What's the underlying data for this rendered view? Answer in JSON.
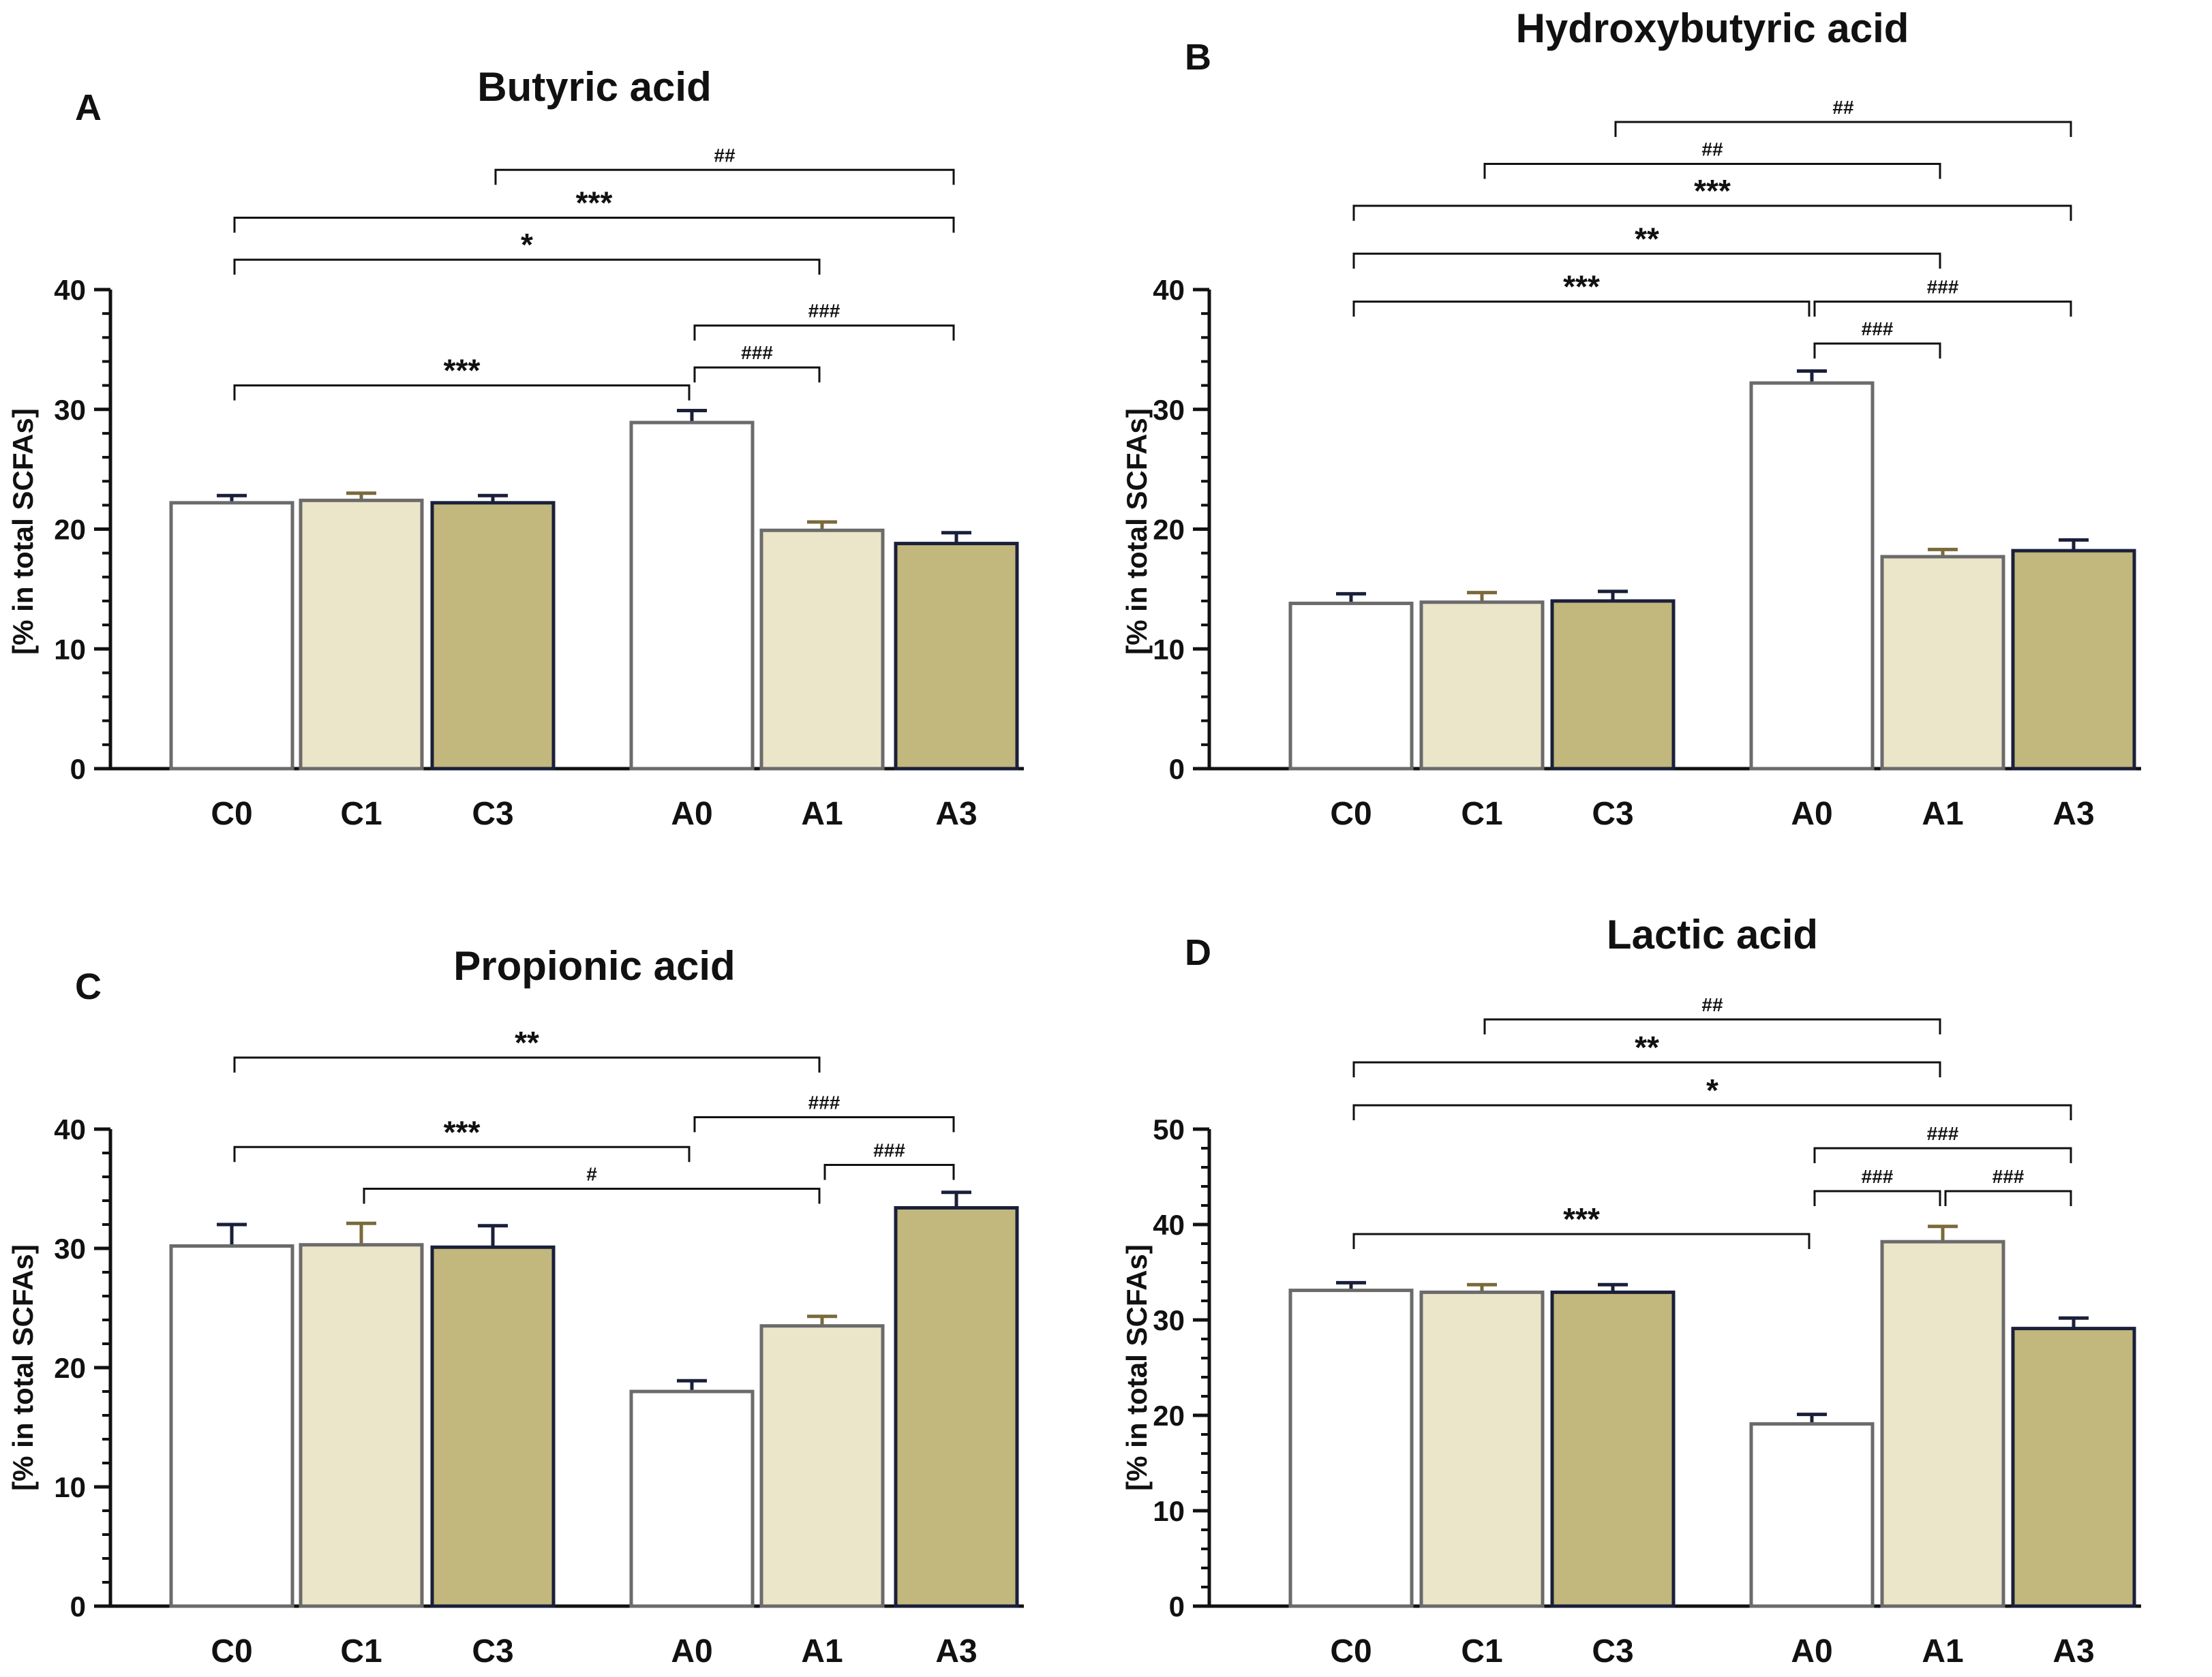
{
  "y_axis_label": "[% in total SCFAs]",
  "chart_data": [
    {
      "type": "bar",
      "panel_label": "A",
      "title": "Butyric acid",
      "ylabel": "[% in total SCFAs]",
      "ylim": [
        0,
        40
      ],
      "yticks": [
        0,
        10,
        20,
        30,
        40
      ],
      "categories": [
        "C0",
        "C1",
        "C3",
        "A0",
        "A1",
        "A3"
      ],
      "values": [
        22.2,
        22.4,
        22.2,
        28.9,
        19.9,
        18.8
      ],
      "errors": [
        0.6,
        0.6,
        0.6,
        1.0,
        0.7,
        0.9
      ],
      "fills": [
        "#ffffff",
        "#ebe5c9",
        "#c2b77c",
        "#ffffff",
        "#ebe5c9",
        "#c2b77c"
      ],
      "strokes": [
        "#6b6b6b",
        "#6b6b6b",
        "#1a1f3a",
        "#6b6b6b",
        "#6b6b6b",
        "#1a1f3a"
      ],
      "brackets": [
        {
          "from": 0,
          "to": 3,
          "label": "***",
          "kind": "star",
          "level": 32
        },
        {
          "from": 3,
          "to": 4,
          "label": "###",
          "kind": "hash",
          "level": 33.5
        },
        {
          "from": 3,
          "to": 5,
          "label": "###",
          "kind": "hash",
          "level": 37
        },
        {
          "from": 0,
          "to": 4,
          "label": "*",
          "kind": "star",
          "level": 42.5
        },
        {
          "from": 0,
          "to": 5,
          "label": "***",
          "kind": "star",
          "level": 46
        },
        {
          "from": 2,
          "to": 5,
          "label": "##",
          "kind": "hash",
          "level": 50
        }
      ]
    },
    {
      "type": "bar",
      "panel_label": "B",
      "title": "Hydroxybutyric acid",
      "ylabel": "[% in total SCFAs]",
      "ylim": [
        0,
        40
      ],
      "yticks": [
        0,
        10,
        20,
        30,
        40
      ],
      "categories": [
        "C0",
        "C1",
        "C3",
        "A0",
        "A1",
        "A3"
      ],
      "values": [
        13.8,
        13.9,
        14.0,
        32.2,
        17.7,
        18.2
      ],
      "errors": [
        0.8,
        0.8,
        0.8,
        1.0,
        0.6,
        0.9
      ],
      "fills": [
        "#ffffff",
        "#ebe5c9",
        "#c2b77c",
        "#ffffff",
        "#ebe5c9",
        "#c2b77c"
      ],
      "strokes": [
        "#6b6b6b",
        "#6b6b6b",
        "#1a1f3a",
        "#6b6b6b",
        "#6b6b6b",
        "#1a1f3a"
      ],
      "brackets": [
        {
          "from": 3,
          "to": 4,
          "label": "###",
          "kind": "hash",
          "level": 35.5
        },
        {
          "from": 0,
          "to": 3,
          "label": "***",
          "kind": "star",
          "level": 39
        },
        {
          "from": 3,
          "to": 5,
          "label": "###",
          "kind": "hash",
          "level": 39
        },
        {
          "from": 0,
          "to": 4,
          "label": "**",
          "kind": "star",
          "level": 43
        },
        {
          "from": 0,
          "to": 5,
          "label": "***",
          "kind": "star",
          "level": 47
        },
        {
          "from": 1,
          "to": 4,
          "label": "##",
          "kind": "hash",
          "level": 50.5
        },
        {
          "from": 2,
          "to": 5,
          "label": "##",
          "kind": "hash",
          "level": 54
        }
      ]
    },
    {
      "type": "bar",
      "panel_label": "C",
      "title": "Propionic acid",
      "ylabel": "[% in total SCFAs]",
      "ylim": [
        0,
        40
      ],
      "yticks": [
        0,
        10,
        20,
        30,
        40
      ],
      "categories": [
        "C0",
        "C1",
        "C3",
        "A0",
        "A1",
        "A3"
      ],
      "values": [
        30.2,
        30.3,
        30.1,
        18.0,
        23.5,
        33.4
      ],
      "errors": [
        1.8,
        1.8,
        1.8,
        0.9,
        0.8,
        1.3
      ],
      "fills": [
        "#ffffff",
        "#ebe5c9",
        "#c2b77c",
        "#ffffff",
        "#ebe5c9",
        "#c2b77c"
      ],
      "strokes": [
        "#6b6b6b",
        "#6b6b6b",
        "#1a1f3a",
        "#6b6b6b",
        "#6b6b6b",
        "#1a1f3a"
      ],
      "brackets": [
        {
          "from": 4,
          "to": 5,
          "label": "###",
          "kind": "hash",
          "level": 37
        },
        {
          "from": 1,
          "to": 4,
          "label": "#",
          "kind": "hash",
          "level": 35
        },
        {
          "from": 0,
          "to": 3,
          "label": "***",
          "kind": "star",
          "level": 38.5
        },
        {
          "from": 3,
          "to": 5,
          "label": "###",
          "kind": "hash",
          "level": 41
        },
        {
          "from": 0,
          "to": 4,
          "label": "**",
          "kind": "star",
          "level": 46
        }
      ]
    },
    {
      "type": "bar",
      "panel_label": "D",
      "title": "Lactic acid",
      "ylabel": "[% in total SCFAs]",
      "ylim": [
        0,
        50
      ],
      "yticks": [
        0,
        10,
        20,
        30,
        40,
        50
      ],
      "categories": [
        "C0",
        "C1",
        "C3",
        "A0",
        "A1",
        "A3"
      ],
      "values": [
        33.1,
        32.9,
        32.9,
        19.1,
        38.2,
        29.1
      ],
      "errors": [
        0.8,
        0.8,
        0.8,
        1.0,
        1.6,
        1.1
      ],
      "fills": [
        "#ffffff",
        "#ebe5c9",
        "#c2b77c",
        "#ffffff",
        "#ebe5c9",
        "#c2b77c"
      ],
      "strokes": [
        "#6b6b6b",
        "#6b6b6b",
        "#1a1f3a",
        "#6b6b6b",
        "#6b6b6b",
        "#1a1f3a"
      ],
      "brackets": [
        {
          "from": 0,
          "to": 3,
          "label": "***",
          "kind": "star",
          "level": 39
        },
        {
          "from": 3,
          "to": 4,
          "label": "###",
          "kind": "hash",
          "level": 43.5
        },
        {
          "from": 4,
          "to": 5,
          "label": "###",
          "kind": "hash",
          "level": 43.5
        },
        {
          "from": 3,
          "to": 5,
          "label": "###",
          "kind": "hash",
          "level": 48
        },
        {
          "from": 0,
          "to": 5,
          "label": "*",
          "kind": "star",
          "level": 52.5
        },
        {
          "from": 0,
          "to": 4,
          "label": "**",
          "kind": "star",
          "level": 57
        },
        {
          "from": 1,
          "to": 4,
          "label": "##",
          "kind": "hash",
          "level": 61.5
        }
      ]
    }
  ]
}
